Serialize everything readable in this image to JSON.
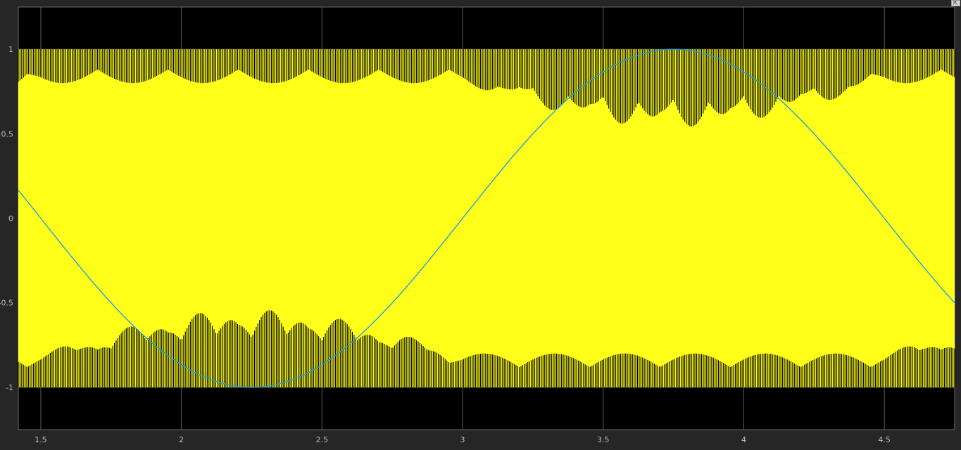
{
  "scope": {
    "dock_icon": "undock-arrow-icon"
  },
  "colors": {
    "background": "#262626",
    "axes_background": "#000000",
    "grid": "#5a5a5a",
    "tick_text": "#bdbdbd",
    "pwm_series": "#ffff1a",
    "sine_series": "#22a0e0"
  },
  "chart_data": {
    "type": "line",
    "title": "",
    "xlabel": "",
    "ylabel": "",
    "xlim": [
      1.42,
      4.75
    ],
    "ylim": [
      -1.25,
      1.25
    ],
    "grid": true,
    "legend": "none",
    "xticks": [
      1.5,
      2,
      2.5,
      3,
      3.5,
      4,
      4.5
    ],
    "xtick_labels": [
      "1.5",
      "2",
      "2.5",
      "3",
      "3.5",
      "4",
      "4.5"
    ],
    "yticks": [
      1,
      0.5,
      0,
      -0.5,
      -1
    ],
    "ytick_labels": [
      "1",
      "0.5",
      "0",
      "-0.5",
      "-1"
    ],
    "series": [
      {
        "kind": "pwm",
        "description_values": "square-wave switching between +1 and -1 at high frequency, pulse envelope following sinusoids",
        "color": "#ffff1a",
        "levels": [
          -1,
          1
        ]
      },
      {
        "kind": "sine",
        "color": "#22a0e0",
        "amplitude": 1,
        "period": 3,
        "peak_x": 3.75,
        "trough_x": 2.25,
        "x": [
          1.42,
          1.75,
          2.0,
          2.25,
          2.5,
          2.75,
          3.0,
          3.25,
          3.5,
          3.75,
          4.0,
          4.25,
          4.5,
          4.75
        ],
        "y": [
          0.18,
          -0.5,
          -0.87,
          -1.0,
          -0.87,
          -0.5,
          0.0,
          0.5,
          0.87,
          1.0,
          0.87,
          0.5,
          0.0,
          -0.5
        ]
      }
    ]
  }
}
